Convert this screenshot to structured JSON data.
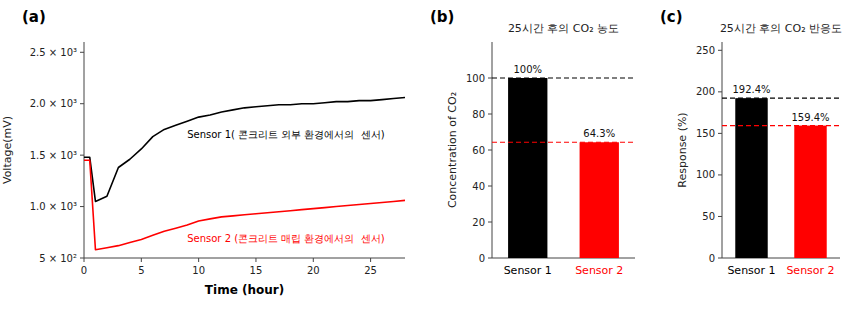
{
  "chart_data": [
    {
      "type": "line",
      "label": "(a)",
      "xlabel": "Time (hour)",
      "ylabel": "Voltage(mV)",
      "x": [
        0,
        0.5,
        1.0,
        2,
        3,
        4,
        5,
        6,
        7,
        8,
        9,
        10,
        11,
        12,
        13,
        14,
        15,
        16,
        17,
        18,
        19,
        20,
        21,
        22,
        23,
        24,
        25,
        26,
        27,
        28
      ],
      "series": [
        {
          "name": "Sensor 1( 콘크리트 외부 환경에서의  센서)",
          "color": "black",
          "values": [
            1480,
            1480,
            1050,
            1100,
            1380,
            1460,
            1560,
            1680,
            1750,
            1790,
            1830,
            1870,
            1890,
            1920,
            1940,
            1960,
            1970,
            1980,
            1990,
            1990,
            2000,
            2000,
            2010,
            2020,
            2020,
            2030,
            2030,
            2040,
            2050,
            2060
          ]
        },
        {
          "name": "Sensor 2 (콘크리트 매립 환경에서의  센서)",
          "color": "red",
          "values": [
            1450,
            1450,
            580,
            600,
            620,
            650,
            680,
            720,
            760,
            790,
            820,
            860,
            880,
            900,
            910,
            920,
            930,
            940,
            950,
            960,
            970,
            980,
            990,
            1000,
            1010,
            1020,
            1030,
            1040,
            1050,
            1060
          ]
        }
      ],
      "xlim": [
        0,
        28
      ],
      "xticks": [
        0,
        5,
        10,
        15,
        20,
        25
      ],
      "ylim": [
        500,
        2600
      ],
      "yticks": [
        {
          "value": 500,
          "label": "5 × 10²"
        },
        {
          "value": 1000,
          "label": "1.0 × 10³"
        },
        {
          "value": 1500,
          "label": "1.5 × 10³"
        },
        {
          "value": 2000,
          "label": "2.0 × 10³"
        },
        {
          "value": 2500,
          "label": "2.5 × 10³"
        }
      ]
    },
    {
      "type": "bar",
      "label": "(b)",
      "title": "25시간 후의 CO₂ 농도",
      "ylabel": "Concentration of CO₂",
      "categories": [
        "Sensor 1",
        "Sensor 2"
      ],
      "values": [
        100,
        64.3
      ],
      "value_labels": [
        "100%",
        "64.3%"
      ],
      "data_labels": true,
      "colors": [
        "black",
        "red"
      ],
      "reference_lines": [
        {
          "value": 100,
          "color": "black"
        },
        {
          "value": 64.3,
          "color": "red"
        }
      ],
      "ylim": [
        0,
        120
      ],
      "yticks": [
        0,
        20,
        40,
        60,
        80,
        100
      ]
    },
    {
      "type": "bar",
      "label": "(c)",
      "title": "25시간 후의 CO₂ 반응도",
      "ylabel": "Response (%)",
      "categories": [
        "Sensor 1",
        "Sensor 2"
      ],
      "values": [
        192.4,
        159.4
      ],
      "value_labels": [
        "192.4%",
        "159.4%"
      ],
      "data_labels": true,
      "colors": [
        "black",
        "red"
      ],
      "reference_lines": [
        {
          "value": 192.4,
          "color": "black"
        },
        {
          "value": 159.4,
          "color": "red"
        }
      ],
      "ylim": [
        0,
        260
      ],
      "yticks": [
        0,
        50,
        100,
        150,
        200,
        250
      ]
    }
  ]
}
